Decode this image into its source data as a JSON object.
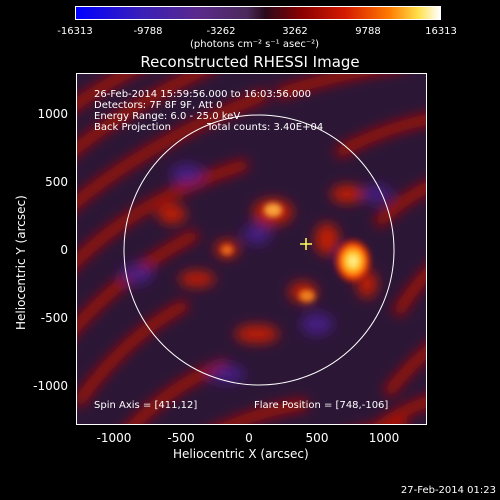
{
  "colorbar": {
    "ticks": [
      "-16313",
      "-9788",
      "-3262",
      "3262",
      "9788",
      "16313"
    ],
    "units": "(photons cm⁻² s⁻¹ asec⁻²)"
  },
  "title": "Reconstructed RHESSI Image",
  "info": {
    "time": "26-Feb-2014 15:59:56.000 to 16:03:56.000",
    "detectors": "Detectors: 7F 8F 9F, Att 0",
    "energy": "Energy Range: 6.0 - 25.0 keV",
    "method": "Back Projection",
    "counts": "Total counts: 3.40E+04"
  },
  "spin_axis": "Spin Axis = [411,12]",
  "flare_position": "Flare Position = [748,-106]",
  "axes": {
    "xlabel": "Heliocentric X (arcsec)",
    "ylabel": "Heliocentric Y (arcsec)",
    "xticks": [
      "-1000",
      "-500",
      "0",
      "500",
      "1000"
    ],
    "yticks": [
      "1000",
      "500",
      "0",
      "-500",
      "-1000"
    ]
  },
  "timestamp": "27-Feb-2014 01:23",
  "colors": {
    "background": "#000000",
    "foreground": "#ffffff",
    "low": "#0000ff",
    "mid": "#2a1530",
    "high": "#ff3a00",
    "peak": "#ffff80"
  }
}
